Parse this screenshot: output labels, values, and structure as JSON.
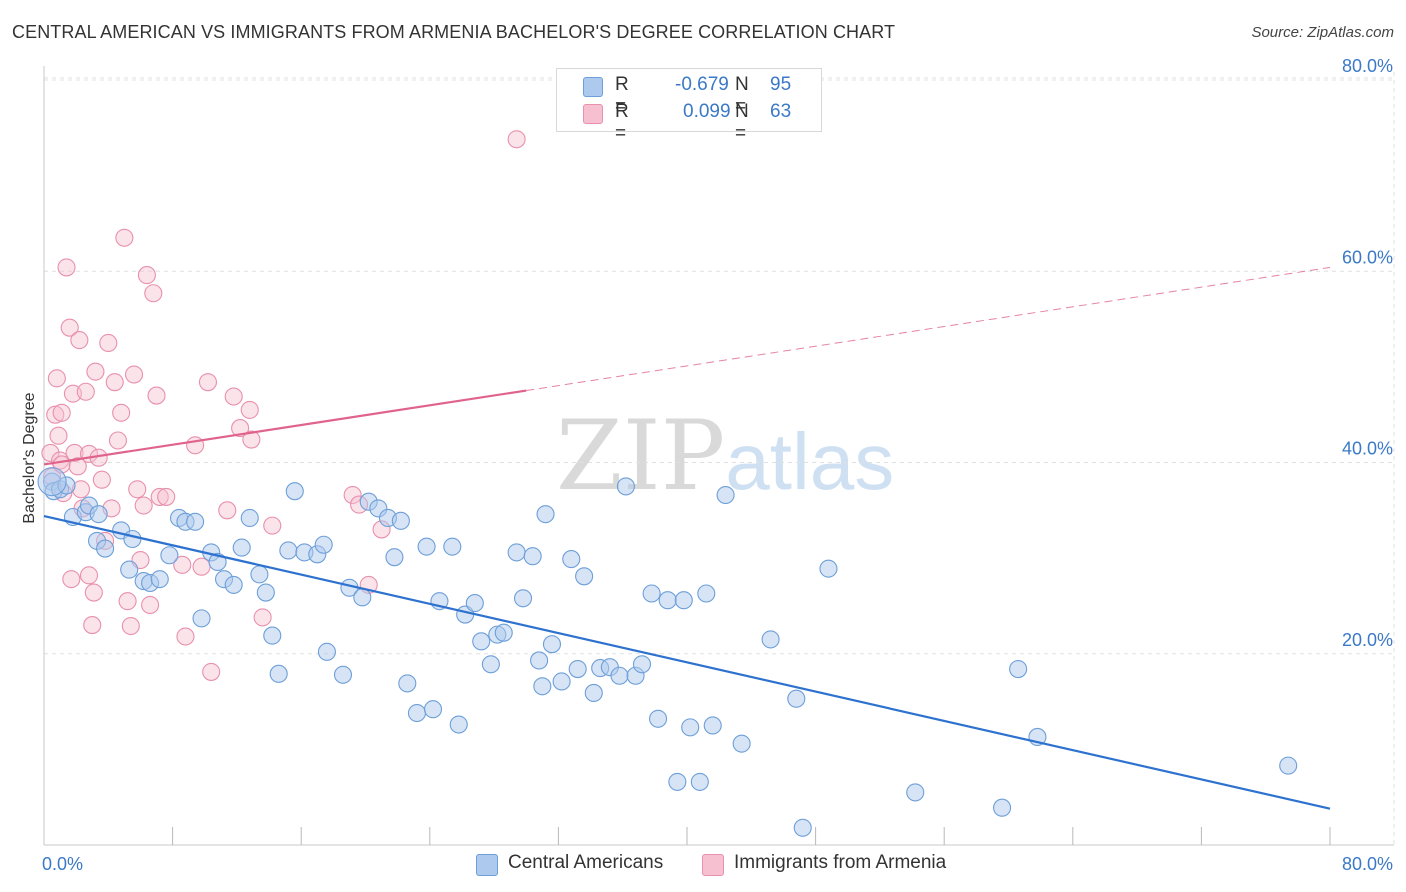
{
  "title": "CENTRAL AMERICAN VS IMMIGRANTS FROM ARMENIA BACHELOR'S DEGREE CORRELATION CHART",
  "source": "Source: ZipAtlas.com",
  "watermark": {
    "zip": "ZIP",
    "atlas": "atlas"
  },
  "legend": {
    "r_label": "R =",
    "n_label": "N =",
    "rows": [
      {
        "r": "-0.679",
        "n": "95",
        "color": "#adc9ee"
      },
      {
        "r": "0.099",
        "n": "63",
        "color": "#f6c0d1"
      }
    ]
  },
  "colors": {
    "blue_fill": "#adc9ee",
    "blue_stroke": "#6d9fd8",
    "blue_line": "#2e72cf",
    "pink_fill": "#f6c0d1",
    "pink_stroke": "#e890ad",
    "pink_line": "#e0638e",
    "tick_text": "#3b79c7",
    "grid": "#e0e0e0"
  },
  "chart_data": {
    "type": "scatter",
    "title": "CENTRAL AMERICAN VS IMMIGRANTS FROM ARMENIA BACHELOR'S DEGREE CORRELATION CHART",
    "xlabel": "",
    "ylabel": "Bachelor's Degree",
    "xlim": [
      0,
      80
    ],
    "ylim": [
      0,
      80
    ],
    "x_tick_labels": [
      "0.0%",
      "80.0%"
    ],
    "y_ticks": [
      20,
      40,
      60,
      80
    ],
    "y_tick_labels": [
      "20.0%",
      "40.0%",
      "60.0%",
      "80.0%"
    ],
    "grid": true,
    "series": [
      {
        "name": "Central Americans",
        "R": -0.679,
        "N": 95,
        "trend": {
          "x": [
            0,
            80
          ],
          "y": [
            34.4,
            3.8
          ],
          "dashed_from": null
        },
        "points": [
          [
            0.5,
            38
          ],
          [
            0.6,
            37
          ],
          [
            1,
            37.2
          ],
          [
            1.4,
            37.6
          ],
          [
            1.8,
            34.3
          ],
          [
            2.6,
            34.8
          ],
          [
            2.8,
            35.5
          ],
          [
            3.4,
            34.6
          ],
          [
            3.3,
            31.8
          ],
          [
            3.8,
            31
          ],
          [
            4.8,
            32.9
          ],
          [
            5.3,
            28.8
          ],
          [
            5.5,
            32
          ],
          [
            6.2,
            27.6
          ],
          [
            6.6,
            27.4
          ],
          [
            7.2,
            27.8
          ],
          [
            7.8,
            30.3
          ],
          [
            8.4,
            34.2
          ],
          [
            8.8,
            33.8
          ],
          [
            9.4,
            33.8
          ],
          [
            9.8,
            23.7
          ],
          [
            10.4,
            30.6
          ],
          [
            10.8,
            29.6
          ],
          [
            11.2,
            27.8
          ],
          [
            11.8,
            27.2
          ],
          [
            12.3,
            31.1
          ],
          [
            12.8,
            34.2
          ],
          [
            13.4,
            28.3
          ],
          [
            13.8,
            26.4
          ],
          [
            14.2,
            21.9
          ],
          [
            14.6,
            17.9
          ],
          [
            15.2,
            30.8
          ],
          [
            15.6,
            37
          ],
          [
            16.2,
            30.6
          ],
          [
            17,
            30.4
          ],
          [
            17.4,
            31.4
          ],
          [
            17.6,
            20.2
          ],
          [
            18.6,
            17.8
          ],
          [
            19,
            26.9
          ],
          [
            19.8,
            25.9
          ],
          [
            20.2,
            35.9
          ],
          [
            20.8,
            35.2
          ],
          [
            21.4,
            34.2
          ],
          [
            21.8,
            30.1
          ],
          [
            22.2,
            33.9
          ],
          [
            22.6,
            16.9
          ],
          [
            23.2,
            13.8
          ],
          [
            23.8,
            31.2
          ],
          [
            24.2,
            14.2
          ],
          [
            24.6,
            25.5
          ],
          [
            25.4,
            31.2
          ],
          [
            25.8,
            12.6
          ],
          [
            26.2,
            24.1
          ],
          [
            26.8,
            25.3
          ],
          [
            27.2,
            21.3
          ],
          [
            27.8,
            18.9
          ],
          [
            28.2,
            22
          ],
          [
            28.6,
            22.2
          ],
          [
            29.4,
            30.6
          ],
          [
            29.8,
            25.8
          ],
          [
            30.4,
            30.2
          ],
          [
            30.8,
            19.3
          ],
          [
            31,
            16.6
          ],
          [
            31.2,
            34.6
          ],
          [
            31.6,
            21
          ],
          [
            32.2,
            17.1
          ],
          [
            32.8,
            29.9
          ],
          [
            33.2,
            18.4
          ],
          [
            33.6,
            28.1
          ],
          [
            34.2,
            15.9
          ],
          [
            34.6,
            18.5
          ],
          [
            35.2,
            18.6
          ],
          [
            35.8,
            17.7
          ],
          [
            36.2,
            37.5
          ],
          [
            36.8,
            17.7
          ],
          [
            37.2,
            18.9
          ],
          [
            37.8,
            26.3
          ],
          [
            38.2,
            13.2
          ],
          [
            38.8,
            25.6
          ],
          [
            39.4,
            6.6
          ],
          [
            39.8,
            25.6
          ],
          [
            40.2,
            12.3
          ],
          [
            40.8,
            6.6
          ],
          [
            41.2,
            26.3
          ],
          [
            41.6,
            12.5
          ],
          [
            42.4,
            36.6
          ],
          [
            43.4,
            10.6
          ],
          [
            45.2,
            21.5
          ],
          [
            46.8,
            15.3
          ],
          [
            47.2,
            1.8
          ],
          [
            48.8,
            28.9
          ],
          [
            54.2,
            5.5
          ],
          [
            59.6,
            3.9
          ],
          [
            60.6,
            18.4
          ],
          [
            61.8,
            11.3
          ],
          [
            77.4,
            8.3
          ]
        ]
      },
      {
        "name": "Immigrants from Armenia",
        "R": 0.099,
        "N": 63,
        "trend": {
          "x": [
            0,
            80
          ],
          "y": [
            39.8,
            60.4
          ],
          "dashed_from": 30
        },
        "points": [
          [
            0.4,
            41
          ],
          [
            0.5,
            38.5
          ],
          [
            0.7,
            45
          ],
          [
            0.8,
            48.8
          ],
          [
            0.9,
            42.8
          ],
          [
            1,
            40.2
          ],
          [
            1.1,
            45.2
          ],
          [
            1.1,
            39.8
          ],
          [
            1.2,
            36.8
          ],
          [
            1.4,
            60.4
          ],
          [
            1.6,
            54.1
          ],
          [
            1.7,
            27.8
          ],
          [
            1.8,
            47.2
          ],
          [
            1.9,
            41
          ],
          [
            2.1,
            39.6
          ],
          [
            2.2,
            52.8
          ],
          [
            2.3,
            37.2
          ],
          [
            2.4,
            35.2
          ],
          [
            2.6,
            47.4
          ],
          [
            2.8,
            40.9
          ],
          [
            2.8,
            28.2
          ],
          [
            3,
            23
          ],
          [
            3.1,
            26.4
          ],
          [
            3.2,
            49.5
          ],
          [
            3.4,
            40.5
          ],
          [
            3.6,
            38.2
          ],
          [
            3.8,
            31.8
          ],
          [
            4,
            52.5
          ],
          [
            4.2,
            35.2
          ],
          [
            4.4,
            48.4
          ],
          [
            4.6,
            42.3
          ],
          [
            4.8,
            45.2
          ],
          [
            5,
            63.5
          ],
          [
            5.2,
            25.5
          ],
          [
            5.4,
            22.9
          ],
          [
            5.6,
            49.2
          ],
          [
            5.8,
            37.2
          ],
          [
            6,
            29.8
          ],
          [
            6.2,
            35.5
          ],
          [
            6.4,
            59.6
          ],
          [
            6.6,
            25.1
          ],
          [
            6.8,
            57.7
          ],
          [
            7,
            47
          ],
          [
            7.2,
            36.4
          ],
          [
            7.6,
            36.4
          ],
          [
            8.6,
            29.3
          ],
          [
            8.8,
            21.8
          ],
          [
            9.4,
            41.8
          ],
          [
            9.8,
            29.1
          ],
          [
            10.2,
            48.4
          ],
          [
            10.4,
            18.1
          ],
          [
            11.4,
            35
          ],
          [
            11.8,
            46.9
          ],
          [
            12.2,
            43.6
          ],
          [
            12.8,
            45.5
          ],
          [
            12.9,
            42.4
          ],
          [
            13.6,
            23.8
          ],
          [
            14.2,
            33.4
          ],
          [
            19.2,
            36.6
          ],
          [
            19.6,
            35.6
          ],
          [
            20.2,
            27.2
          ],
          [
            21,
            33
          ],
          [
            29.4,
            73.8
          ]
        ]
      }
    ]
  }
}
